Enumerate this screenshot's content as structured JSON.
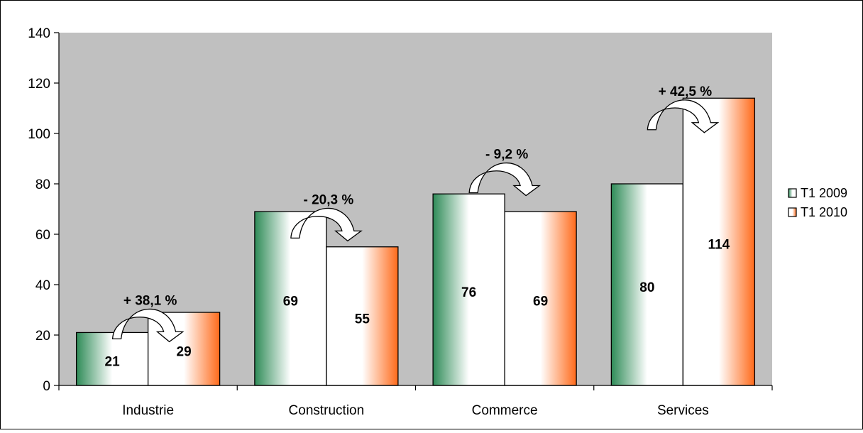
{
  "chart_data": {
    "type": "bar",
    "categories": [
      "Industrie",
      "Construction",
      "Commerce",
      "Services"
    ],
    "series": [
      {
        "name": "T1 2009",
        "values": [
          21,
          69,
          76,
          80
        ]
      },
      {
        "name": "T1 2010",
        "values": [
          29,
          55,
          69,
          114
        ]
      }
    ],
    "data_labels": [
      [
        "21",
        "69",
        "76",
        "80"
      ],
      [
        "29",
        "55",
        "69",
        "114"
      ]
    ],
    "annotations": [
      "+ 38,1 %",
      "- 20,3 %",
      "- 9,2 %",
      "+ 42,5 %"
    ],
    "annotation_y": [
      32,
      72,
      90,
      115
    ],
    "y_ticks": [
      0,
      20,
      40,
      60,
      80,
      100,
      120,
      140
    ],
    "ylim": [
      0,
      140
    ],
    "grid": false,
    "legend_position": "right",
    "plot_background": "#c0c0c0",
    "colors": {
      "series_2009_dark": "#2e8b57",
      "series_2009_light": "#ffffff",
      "series_2010_dark": "#ff6a1a",
      "series_2010_light": "#ffffff"
    },
    "annotation_icon": "curved-arrow-icon"
  }
}
